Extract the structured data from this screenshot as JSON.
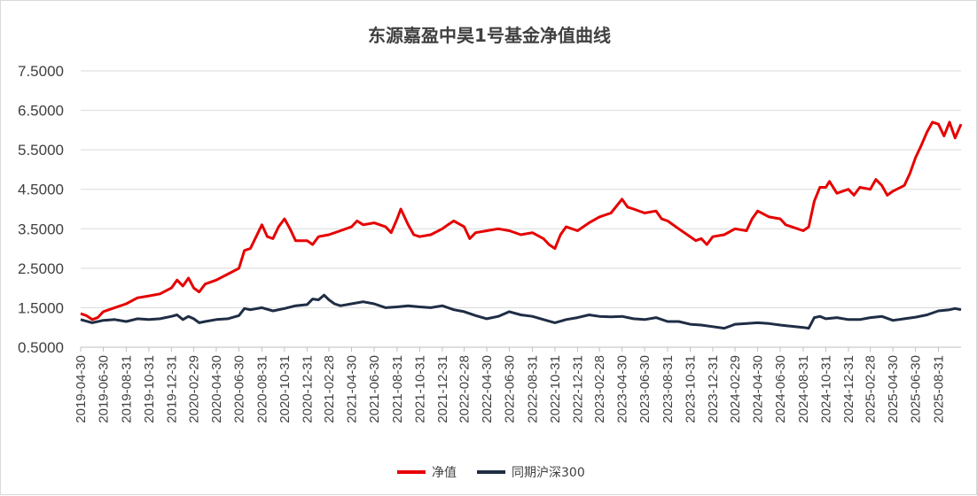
{
  "chart_data": {
    "type": "line",
    "title": "东源嘉盈中昊1号基金净值曲线",
    "xlabel": "",
    "ylabel": "",
    "ylim": [
      0.5,
      7.5
    ],
    "yticks": [
      "0.5000",
      "1.5000",
      "2.5000",
      "3.5000",
      "4.5000",
      "5.5000",
      "6.5000",
      "7.5000"
    ],
    "grid": "horizontal",
    "legend_position": "bottom",
    "x_start": "2019-04-30",
    "x_end": "2025-10-31",
    "x_ticks": [
      "2019-04-30",
      "2019-06-30",
      "2019-08-31",
      "2019-10-31",
      "2019-12-31",
      "2020-02-29",
      "2020-04-30",
      "2020-06-30",
      "2020-08-31",
      "2020-10-31",
      "2020-12-31",
      "2021-02-28",
      "2021-04-30",
      "2021-06-30",
      "2021-08-31",
      "2021-10-31",
      "2021-12-31",
      "2022-02-28",
      "2022-04-30",
      "2022-06-30",
      "2022-08-31",
      "2022-10-31",
      "2022-12-31",
      "2023-02-28",
      "2023-04-30",
      "2023-06-30",
      "2023-08-31",
      "2023-10-31",
      "2023-12-31",
      "2024-02-29",
      "2024-04-30",
      "2024-06-30",
      "2024-08-31",
      "2024-10-31",
      "2024-12-31",
      "2025-02-28",
      "2025-04-30",
      "2025-06-30",
      "2025-08-31"
    ],
    "series": [
      {
        "name": "净值",
        "color": "#e60000",
        "points": [
          [
            "2019-04-30",
            1.35
          ],
          [
            "2019-05-15",
            1.3
          ],
          [
            "2019-05-31",
            1.2
          ],
          [
            "2019-06-15",
            1.25
          ],
          [
            "2019-06-30",
            1.4
          ],
          [
            "2019-07-31",
            1.5
          ],
          [
            "2019-08-31",
            1.6
          ],
          [
            "2019-09-30",
            1.75
          ],
          [
            "2019-10-31",
            1.8
          ],
          [
            "2019-11-30",
            1.85
          ],
          [
            "2019-12-31",
            2.0
          ],
          [
            "2020-01-15",
            2.2
          ],
          [
            "2020-01-31",
            2.05
          ],
          [
            "2020-02-15",
            2.25
          ],
          [
            "2020-02-29",
            2.0
          ],
          [
            "2020-03-15",
            1.9
          ],
          [
            "2020-03-31",
            2.1
          ],
          [
            "2020-04-30",
            2.2
          ],
          [
            "2020-05-31",
            2.35
          ],
          [
            "2020-06-30",
            2.5
          ],
          [
            "2020-07-15",
            2.95
          ],
          [
            "2020-07-31",
            3.0
          ],
          [
            "2020-08-31",
            3.6
          ],
          [
            "2020-09-15",
            3.3
          ],
          [
            "2020-09-30",
            3.25
          ],
          [
            "2020-10-15",
            3.55
          ],
          [
            "2020-10-31",
            3.75
          ],
          [
            "2020-11-15",
            3.5
          ],
          [
            "2020-11-30",
            3.2
          ],
          [
            "2020-12-31",
            3.2
          ],
          [
            "2021-01-15",
            3.1
          ],
          [
            "2021-01-31",
            3.3
          ],
          [
            "2021-02-28",
            3.35
          ],
          [
            "2021-03-31",
            3.45
          ],
          [
            "2021-04-30",
            3.55
          ],
          [
            "2021-05-15",
            3.7
          ],
          [
            "2021-05-31",
            3.6
          ],
          [
            "2021-06-30",
            3.65
          ],
          [
            "2021-07-31",
            3.55
          ],
          [
            "2021-08-15",
            3.4
          ],
          [
            "2021-08-31",
            3.75
          ],
          [
            "2021-09-10",
            4.0
          ],
          [
            "2021-09-30",
            3.6
          ],
          [
            "2021-10-15",
            3.35
          ],
          [
            "2021-10-31",
            3.3
          ],
          [
            "2021-11-30",
            3.35
          ],
          [
            "2021-12-31",
            3.5
          ],
          [
            "2022-01-15",
            3.6
          ],
          [
            "2022-01-31",
            3.7
          ],
          [
            "2022-02-28",
            3.55
          ],
          [
            "2022-03-15",
            3.25
          ],
          [
            "2022-03-31",
            3.4
          ],
          [
            "2022-04-30",
            3.45
          ],
          [
            "2022-05-31",
            3.5
          ],
          [
            "2022-06-30",
            3.45
          ],
          [
            "2022-07-31",
            3.35
          ],
          [
            "2022-08-31",
            3.4
          ],
          [
            "2022-09-30",
            3.25
          ],
          [
            "2022-10-15",
            3.1
          ],
          [
            "2022-10-31",
            3.0
          ],
          [
            "2022-11-15",
            3.35
          ],
          [
            "2022-11-30",
            3.55
          ],
          [
            "2022-12-31",
            3.45
          ],
          [
            "2023-01-31",
            3.65
          ],
          [
            "2023-02-28",
            3.8
          ],
          [
            "2023-03-31",
            3.9
          ],
          [
            "2023-04-30",
            4.25
          ],
          [
            "2023-05-15",
            4.05
          ],
          [
            "2023-05-31",
            4.0
          ],
          [
            "2023-06-30",
            3.9
          ],
          [
            "2023-07-31",
            3.95
          ],
          [
            "2023-08-15",
            3.75
          ],
          [
            "2023-08-31",
            3.7
          ],
          [
            "2023-09-30",
            3.5
          ],
          [
            "2023-10-31",
            3.3
          ],
          [
            "2023-11-15",
            3.2
          ],
          [
            "2023-11-30",
            3.25
          ],
          [
            "2023-12-15",
            3.1
          ],
          [
            "2023-12-31",
            3.3
          ],
          [
            "2024-01-31",
            3.35
          ],
          [
            "2024-02-29",
            3.5
          ],
          [
            "2024-03-31",
            3.45
          ],
          [
            "2024-04-15",
            3.75
          ],
          [
            "2024-04-30",
            3.95
          ],
          [
            "2024-05-31",
            3.8
          ],
          [
            "2024-06-30",
            3.75
          ],
          [
            "2024-07-15",
            3.6
          ],
          [
            "2024-07-31",
            3.55
          ],
          [
            "2024-08-31",
            3.45
          ],
          [
            "2024-09-15",
            3.55
          ],
          [
            "2024-09-30",
            4.2
          ],
          [
            "2024-10-15",
            4.55
          ],
          [
            "2024-10-31",
            4.55
          ],
          [
            "2024-11-10",
            4.7
          ],
          [
            "2024-11-30",
            4.4
          ],
          [
            "2024-12-31",
            4.5
          ],
          [
            "2025-01-15",
            4.35
          ],
          [
            "2025-01-31",
            4.55
          ],
          [
            "2025-02-28",
            4.5
          ],
          [
            "2025-03-15",
            4.75
          ],
          [
            "2025-03-31",
            4.6
          ],
          [
            "2025-04-15",
            4.35
          ],
          [
            "2025-04-30",
            4.45
          ],
          [
            "2025-05-31",
            4.6
          ],
          [
            "2025-06-15",
            4.9
          ],
          [
            "2025-06-30",
            5.3
          ],
          [
            "2025-07-15",
            5.6
          ],
          [
            "2025-07-31",
            5.95
          ],
          [
            "2025-08-15",
            6.2
          ],
          [
            "2025-08-31",
            6.15
          ],
          [
            "2025-09-15",
            5.85
          ],
          [
            "2025-09-30",
            6.2
          ],
          [
            "2025-10-15",
            5.8
          ],
          [
            "2025-10-31",
            6.15
          ]
        ]
      },
      {
        "name": "同期沪深300",
        "color": "#1f2d45",
        "points": [
          [
            "2019-04-30",
            1.2
          ],
          [
            "2019-05-31",
            1.12
          ],
          [
            "2019-06-30",
            1.18
          ],
          [
            "2019-07-31",
            1.2
          ],
          [
            "2019-08-31",
            1.15
          ],
          [
            "2019-09-30",
            1.22
          ],
          [
            "2019-10-31",
            1.2
          ],
          [
            "2019-11-30",
            1.22
          ],
          [
            "2019-12-31",
            1.28
          ],
          [
            "2020-01-15",
            1.32
          ],
          [
            "2020-01-31",
            1.2
          ],
          [
            "2020-02-15",
            1.28
          ],
          [
            "2020-02-29",
            1.22
          ],
          [
            "2020-03-15",
            1.12
          ],
          [
            "2020-03-31",
            1.15
          ],
          [
            "2020-04-30",
            1.2
          ],
          [
            "2020-05-31",
            1.22
          ],
          [
            "2020-06-30",
            1.3
          ],
          [
            "2020-07-15",
            1.48
          ],
          [
            "2020-07-31",
            1.45
          ],
          [
            "2020-08-31",
            1.5
          ],
          [
            "2020-09-30",
            1.42
          ],
          [
            "2020-10-31",
            1.48
          ],
          [
            "2020-11-30",
            1.55
          ],
          [
            "2020-12-31",
            1.58
          ],
          [
            "2021-01-15",
            1.72
          ],
          [
            "2021-01-31",
            1.7
          ],
          [
            "2021-02-15",
            1.82
          ],
          [
            "2021-02-28",
            1.7
          ],
          [
            "2021-03-15",
            1.6
          ],
          [
            "2021-03-31",
            1.55
          ],
          [
            "2021-04-30",
            1.6
          ],
          [
            "2021-05-31",
            1.65
          ],
          [
            "2021-06-30",
            1.6
          ],
          [
            "2021-07-31",
            1.5
          ],
          [
            "2021-08-31",
            1.52
          ],
          [
            "2021-09-30",
            1.55
          ],
          [
            "2021-10-31",
            1.52
          ],
          [
            "2021-11-30",
            1.5
          ],
          [
            "2021-12-31",
            1.55
          ],
          [
            "2022-01-31",
            1.45
          ],
          [
            "2022-02-28",
            1.4
          ],
          [
            "2022-03-31",
            1.3
          ],
          [
            "2022-04-30",
            1.22
          ],
          [
            "2022-05-31",
            1.28
          ],
          [
            "2022-06-30",
            1.4
          ],
          [
            "2022-07-31",
            1.32
          ],
          [
            "2022-08-31",
            1.28
          ],
          [
            "2022-09-30",
            1.2
          ],
          [
            "2022-10-31",
            1.12
          ],
          [
            "2022-11-30",
            1.2
          ],
          [
            "2022-12-31",
            1.25
          ],
          [
            "2023-01-31",
            1.32
          ],
          [
            "2023-02-28",
            1.28
          ],
          [
            "2023-03-31",
            1.27
          ],
          [
            "2023-04-30",
            1.28
          ],
          [
            "2023-05-31",
            1.22
          ],
          [
            "2023-06-30",
            1.2
          ],
          [
            "2023-07-31",
            1.25
          ],
          [
            "2023-08-31",
            1.15
          ],
          [
            "2023-09-30",
            1.15
          ],
          [
            "2023-10-31",
            1.08
          ],
          [
            "2023-11-30",
            1.06
          ],
          [
            "2023-12-31",
            1.02
          ],
          [
            "2024-01-31",
            0.98
          ],
          [
            "2024-02-29",
            1.08
          ],
          [
            "2024-03-31",
            1.1
          ],
          [
            "2024-04-30",
            1.12
          ],
          [
            "2024-05-31",
            1.1
          ],
          [
            "2024-06-30",
            1.06
          ],
          [
            "2024-07-31",
            1.03
          ],
          [
            "2024-08-31",
            1.0
          ],
          [
            "2024-09-15",
            0.98
          ],
          [
            "2024-09-30",
            1.25
          ],
          [
            "2024-10-15",
            1.28
          ],
          [
            "2024-10-31",
            1.22
          ],
          [
            "2024-11-30",
            1.25
          ],
          [
            "2024-12-31",
            1.2
          ],
          [
            "2025-01-31",
            1.2
          ],
          [
            "2025-02-28",
            1.25
          ],
          [
            "2025-03-31",
            1.28
          ],
          [
            "2025-04-30",
            1.18
          ],
          [
            "2025-05-31",
            1.22
          ],
          [
            "2025-06-30",
            1.26
          ],
          [
            "2025-07-31",
            1.32
          ],
          [
            "2025-08-31",
            1.42
          ],
          [
            "2025-09-30",
            1.45
          ],
          [
            "2025-10-15",
            1.48
          ],
          [
            "2025-10-31",
            1.45
          ]
        ]
      }
    ]
  }
}
